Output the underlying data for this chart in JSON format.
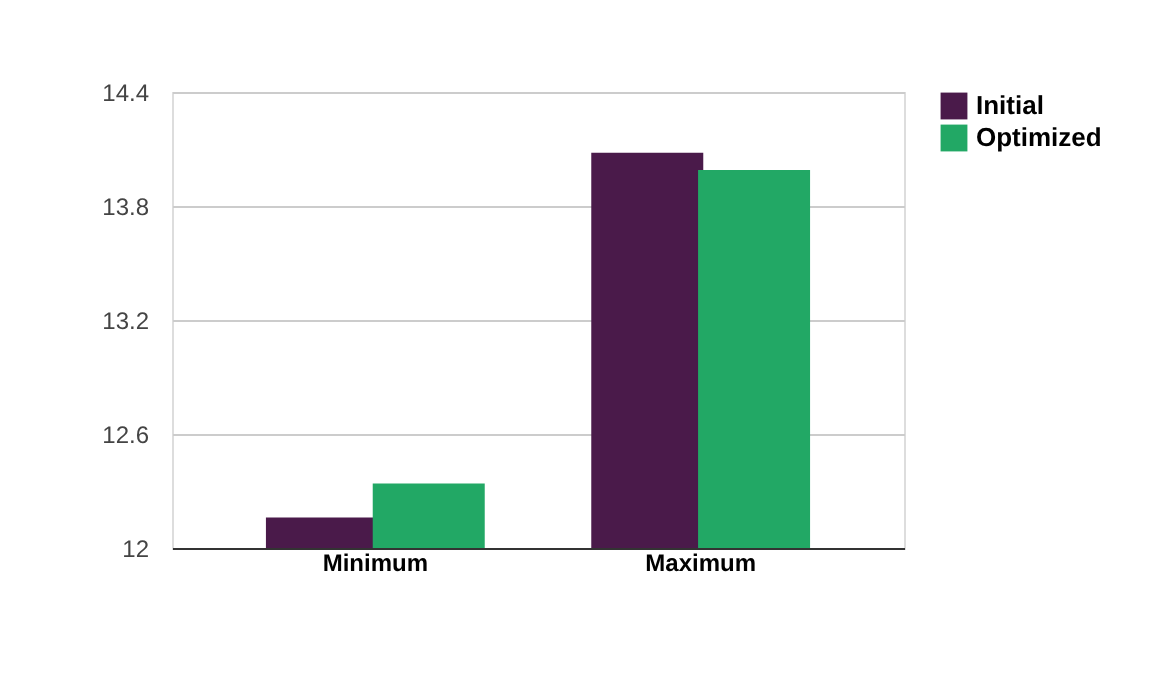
{
  "chart_data": {
    "type": "bar",
    "categories": [
      "Minimum",
      "Maximum"
    ],
    "series": [
      {
        "name": "Initial",
        "color": "#4a1a4a",
        "values": [
          12.16,
          14.08
        ]
      },
      {
        "name": "Optimized",
        "color": "#22a865",
        "values": [
          12.34,
          13.99
        ]
      }
    ],
    "ylim": [
      12,
      14.4
    ],
    "yticks": [
      12,
      12.6,
      13.2,
      13.8,
      14.4
    ],
    "grid": "y",
    "legend": "top right"
  }
}
